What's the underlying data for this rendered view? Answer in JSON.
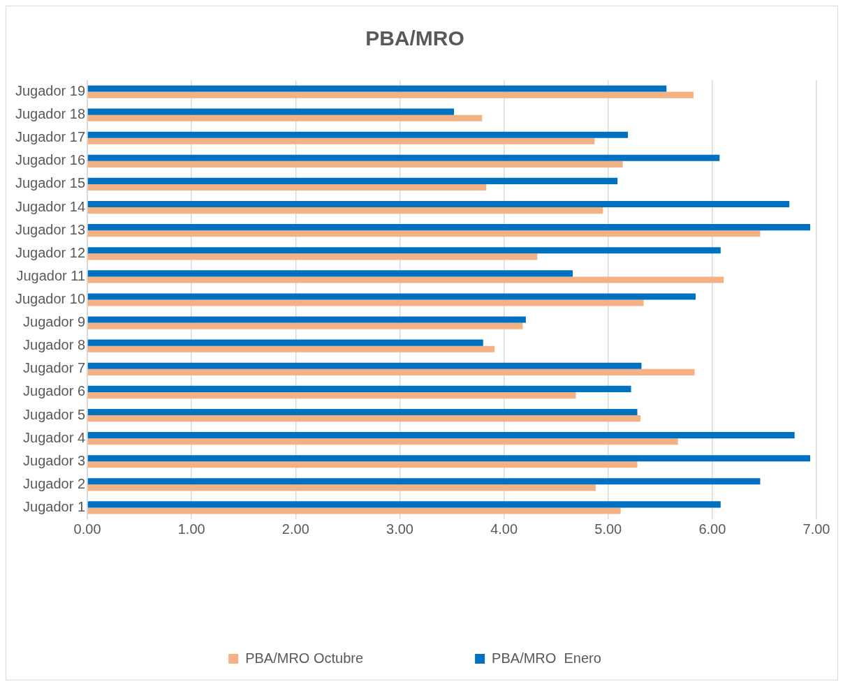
{
  "chart_data": {
    "type": "bar",
    "orientation": "horizontal",
    "title": "PBA/MRO",
    "categories": [
      "Jugador 19",
      "Jugador 18",
      "Jugador 17",
      "Jugador 16",
      "Jugador 15",
      "Jugador 14",
      "Jugador 13",
      "Jugador 12",
      "Jugador 11",
      "Jugador 10",
      "Jugador 9",
      "Jugador 8",
      "Jugador 7",
      "Jugador 6",
      "Jugador 5",
      "Jugador 4",
      "Jugador 3",
      "Jugador 2",
      "Jugador 1"
    ],
    "series": [
      {
        "name": "PBA/MRO  Enero",
        "color": "#0070c0",
        "values": [
          5.56,
          3.52,
          5.19,
          6.07,
          5.09,
          6.74,
          6.94,
          6.08,
          4.66,
          5.84,
          4.21,
          3.8,
          5.32,
          5.22,
          5.28,
          6.79,
          6.94,
          6.46,
          6.08
        ]
      },
      {
        "name": "PBA/MRO Octubre",
        "color": "#f4b183",
        "values": [
          5.82,
          3.79,
          4.87,
          5.14,
          3.83,
          4.95,
          6.46,
          4.32,
          6.11,
          5.34,
          4.18,
          3.91,
          5.83,
          4.69,
          5.31,
          5.67,
          5.28,
          4.88,
          5.12
        ]
      }
    ],
    "xlim": [
      0,
      7
    ],
    "xticks": [
      {
        "value": 0,
        "label": "0.00"
      },
      {
        "value": 1,
        "label": "1.00"
      },
      {
        "value": 2,
        "label": "2.00"
      },
      {
        "value": 3,
        "label": "3.00"
      },
      {
        "value": 4,
        "label": "4.00"
      },
      {
        "value": 5,
        "label": "5.00"
      },
      {
        "value": 6,
        "label": "6.00"
      },
      {
        "value": 7,
        "label": "7.00"
      }
    ],
    "grid": "x",
    "legend": "bottom"
  }
}
